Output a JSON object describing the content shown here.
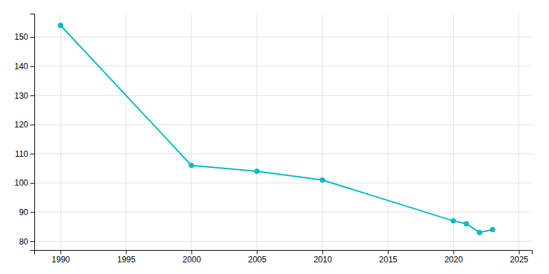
{
  "chart_data": {
    "type": "line",
    "x": [
      1990,
      2000,
      2005,
      2010,
      2020,
      2021,
      2022,
      2023
    ],
    "values": [
      154,
      106,
      104,
      101,
      87,
      86,
      83,
      84
    ],
    "color": "#00BBBF",
    "marker": "circle",
    "xlim": [
      1988,
      2026
    ],
    "ylim": [
      77,
      158
    ],
    "xticks": [
      1990,
      1995,
      2000,
      2005,
      2010,
      2015,
      2020,
      2025
    ],
    "yticks": [
      80,
      90,
      100,
      110,
      120,
      130,
      140,
      150
    ],
    "grid": true
  }
}
